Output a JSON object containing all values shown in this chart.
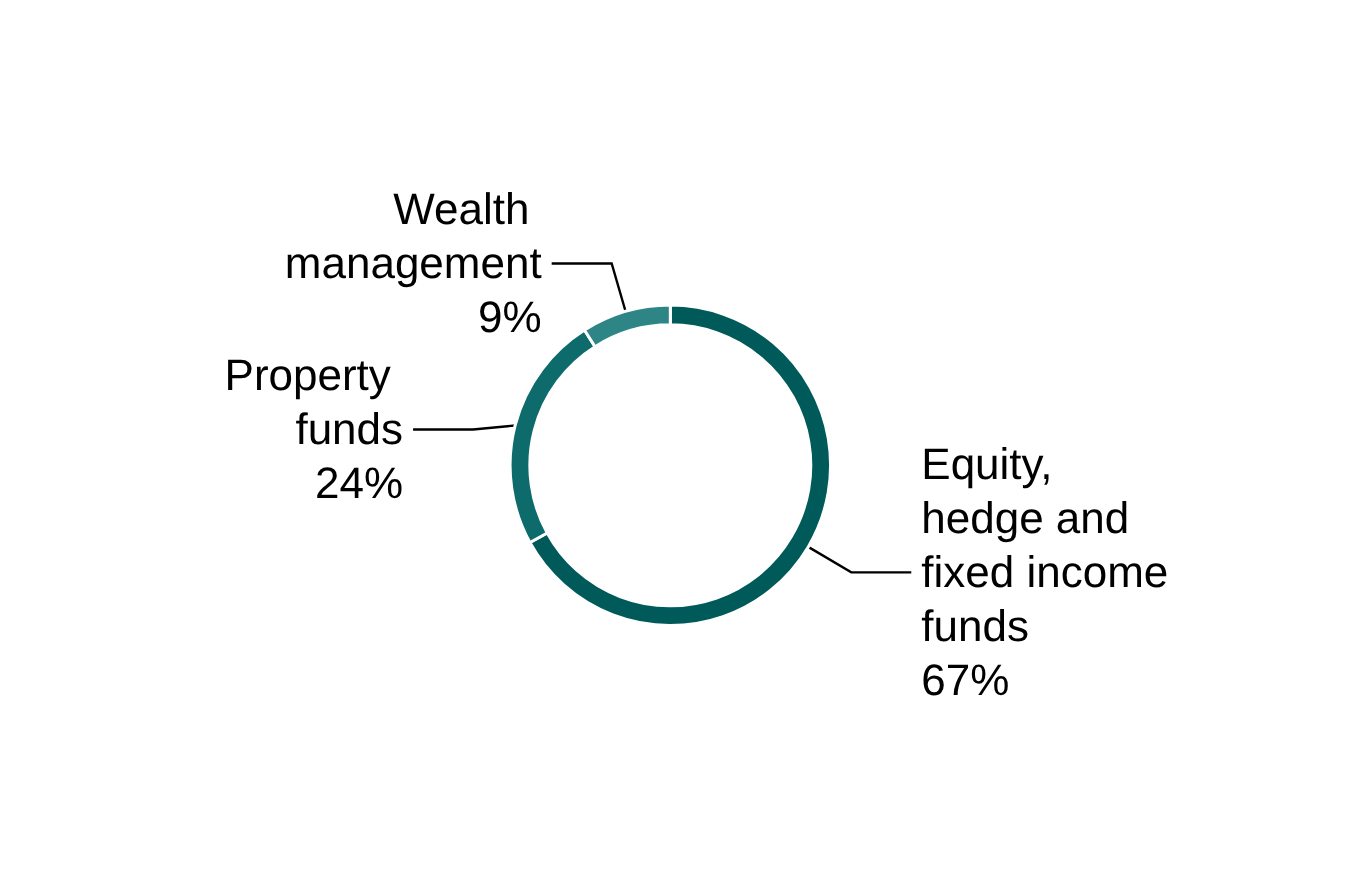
{
  "chart_data": {
    "type": "donut",
    "categories": [
      "Equity, hedge and fixed income funds",
      "Property funds",
      "Wealth management"
    ],
    "values": [
      67,
      24,
      9
    ],
    "colors": [
      "#005a5a",
      "#0d6b6b",
      "#2e8585"
    ],
    "value_labels": [
      "67%",
      "24%",
      "9%"
    ],
    "legend": false
  }
}
